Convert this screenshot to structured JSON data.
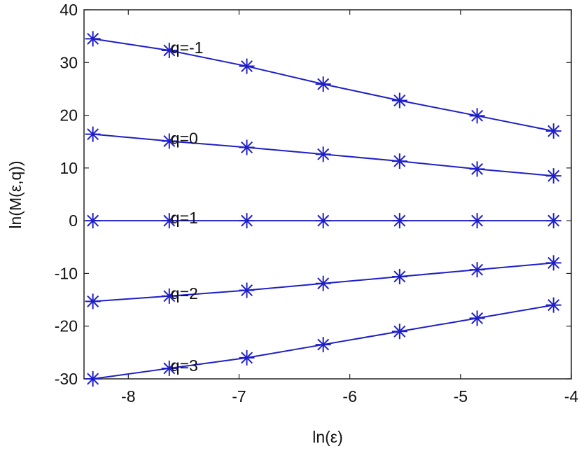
{
  "chart_data": {
    "type": "line",
    "xlabel": "ln(ε)",
    "ylabel": "ln(M(ε,q))",
    "xlim": [
      -8.4,
      -4
    ],
    "ylim": [
      -30,
      40
    ],
    "xticks": [
      -8,
      -7,
      -6,
      -5,
      -4
    ],
    "yticks": [
      -30,
      -20,
      -10,
      0,
      10,
      20,
      30,
      40
    ],
    "grid": false,
    "legend": "none",
    "color": "#1f1fc8",
    "marker": "asterisk",
    "x": [
      -8.32,
      -7.63,
      -6.93,
      -6.24,
      -5.55,
      -4.85,
      -4.16
    ],
    "series": [
      {
        "name": "q=-1",
        "values": [
          34.5,
          32.3,
          29.3,
          25.9,
          22.8,
          19.9,
          17.0
        ],
        "label_x_index": 1
      },
      {
        "name": "q=0",
        "values": [
          16.4,
          15.1,
          13.9,
          12.6,
          11.3,
          9.8,
          8.5
        ],
        "label_x_index": 1
      },
      {
        "name": "q=1",
        "values": [
          0.0,
          0.0,
          0.0,
          0.0,
          0.0,
          0.0,
          0.0
        ],
        "label_x_index": 1
      },
      {
        "name": "q=2",
        "values": [
          -15.3,
          -14.3,
          -13.2,
          -11.9,
          -10.6,
          -9.3,
          -8.0
        ],
        "label_x_index": 1
      },
      {
        "name": "q=3",
        "values": [
          -30.0,
          -28.0,
          -26.0,
          -23.5,
          -21.0,
          -18.5,
          -16.0
        ],
        "label_x_index": 1
      }
    ]
  }
}
